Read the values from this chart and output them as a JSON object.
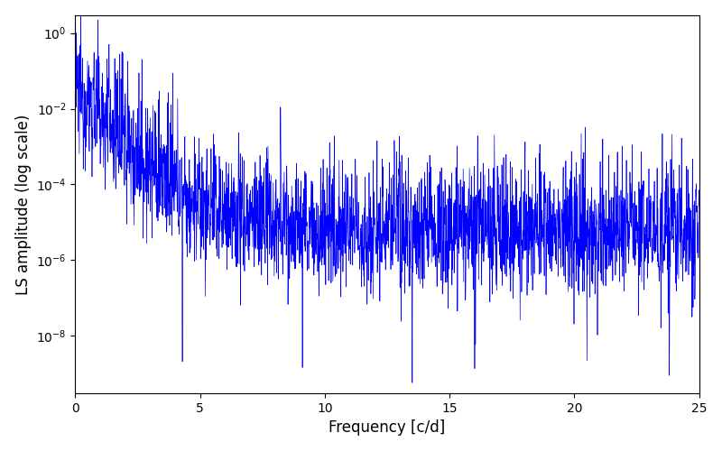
{
  "title": "",
  "xlabel": "Frequency [c/d]",
  "ylabel": "LS amplitude (log scale)",
  "xlim": [
    0,
    25
  ],
  "ylim": [
    3e-10,
    3.0
  ],
  "line_color": "#0000FF",
  "line_width": 0.5,
  "background_color": "#ffffff",
  "figsize": [
    8.0,
    5.0
  ],
  "dpi": 100,
  "seed": 12345,
  "n_points": 2500,
  "freq_max": 25.0
}
